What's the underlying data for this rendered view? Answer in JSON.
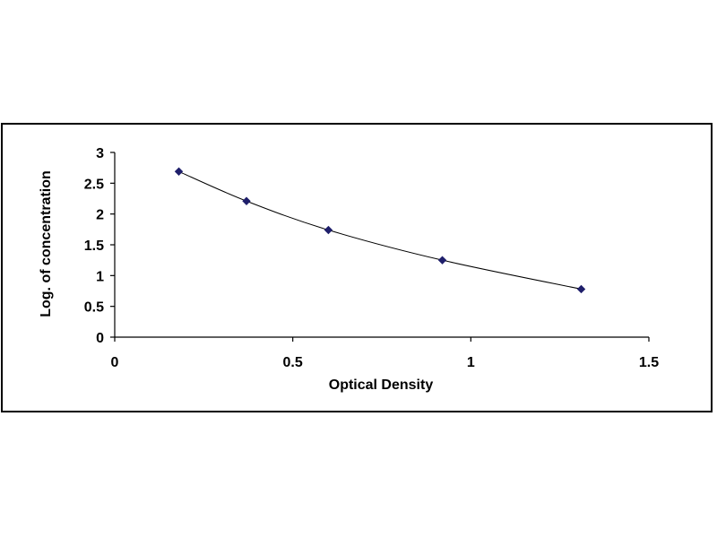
{
  "chart_data": {
    "type": "scatter",
    "title": "",
    "xlabel": "Optical Density",
    "ylabel": "Log. of concentration",
    "xlim": [
      0,
      1.5
    ],
    "ylim": [
      0,
      3
    ],
    "xticks": [
      "0",
      "0.5",
      "1",
      "1.5"
    ],
    "yticks": [
      "0",
      "0.5",
      "1",
      "1.5",
      "2",
      "2.5",
      "3"
    ],
    "grid": false,
    "legend": "none",
    "trendline": "smooth curve",
    "marker": "diamond",
    "colors": {
      "marker": "#1f1f6b",
      "line": "#000000",
      "axis": "#000000"
    },
    "series": [
      {
        "x": [
          0.18,
          0.37,
          0.6,
          0.92,
          1.31
        ],
        "y": [
          2.69,
          2.21,
          1.74,
          1.25,
          0.78
        ]
      }
    ]
  }
}
